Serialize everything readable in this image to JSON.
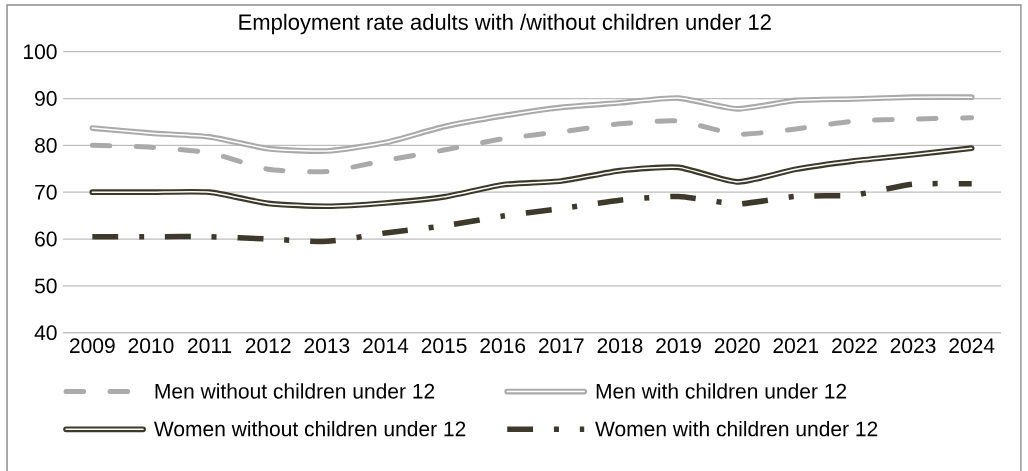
{
  "chart_data": {
    "type": "line",
    "title": "Employment rate adults with /without children under 12",
    "categories": [
      "2009",
      "2010",
      "2011",
      "2012",
      "2013",
      "2014",
      "2015",
      "2016",
      "2017",
      "2018",
      "2019",
      "2020",
      "2021",
      "2022",
      "2023",
      "2024"
    ],
    "ylim": [
      40,
      100
    ],
    "yticks": [
      40,
      50,
      60,
      70,
      80,
      90,
      100
    ],
    "grid": "y",
    "legend": "bottom",
    "marker": "none",
    "series": [
      {
        "name": "Men without children under 12",
        "color": "#aaaaaa",
        "line_style": "dashed",
        "values": [
          80.0,
          79.6,
          78.4,
          74.9,
          74.4,
          76.8,
          79.0,
          81.4,
          82.9,
          84.6,
          85.2,
          82.4,
          83.5,
          85.2,
          85.6,
          85.9
        ]
      },
      {
        "name": "Men with children under 12",
        "color": "#aaaaaa",
        "line_style": "solid",
        "values": [
          83.7,
          82.6,
          81.8,
          79.3,
          78.8,
          80.6,
          84.0,
          86.3,
          88.1,
          89.1,
          90.1,
          87.8,
          89.6,
          89.9,
          90.3,
          90.3
        ]
      },
      {
        "name": "Women without children under 12",
        "color": "#3d3a2b",
        "line_style": "solid",
        "values": [
          70.0,
          70.0,
          70.0,
          67.6,
          67.0,
          67.7,
          69.0,
          71.6,
          72.4,
          74.6,
          75.3,
          72.2,
          74.9,
          76.7,
          78.0,
          79.4
        ]
      },
      {
        "name": "Women with children under 12",
        "color": "#3d3a2b",
        "line_style": "dashdot",
        "values": [
          60.5,
          60.5,
          60.5,
          60.0,
          59.5,
          61.3,
          62.8,
          64.9,
          66.5,
          68.3,
          69.1,
          67.5,
          69.1,
          69.4,
          71.7,
          71.8
        ]
      }
    ]
  }
}
